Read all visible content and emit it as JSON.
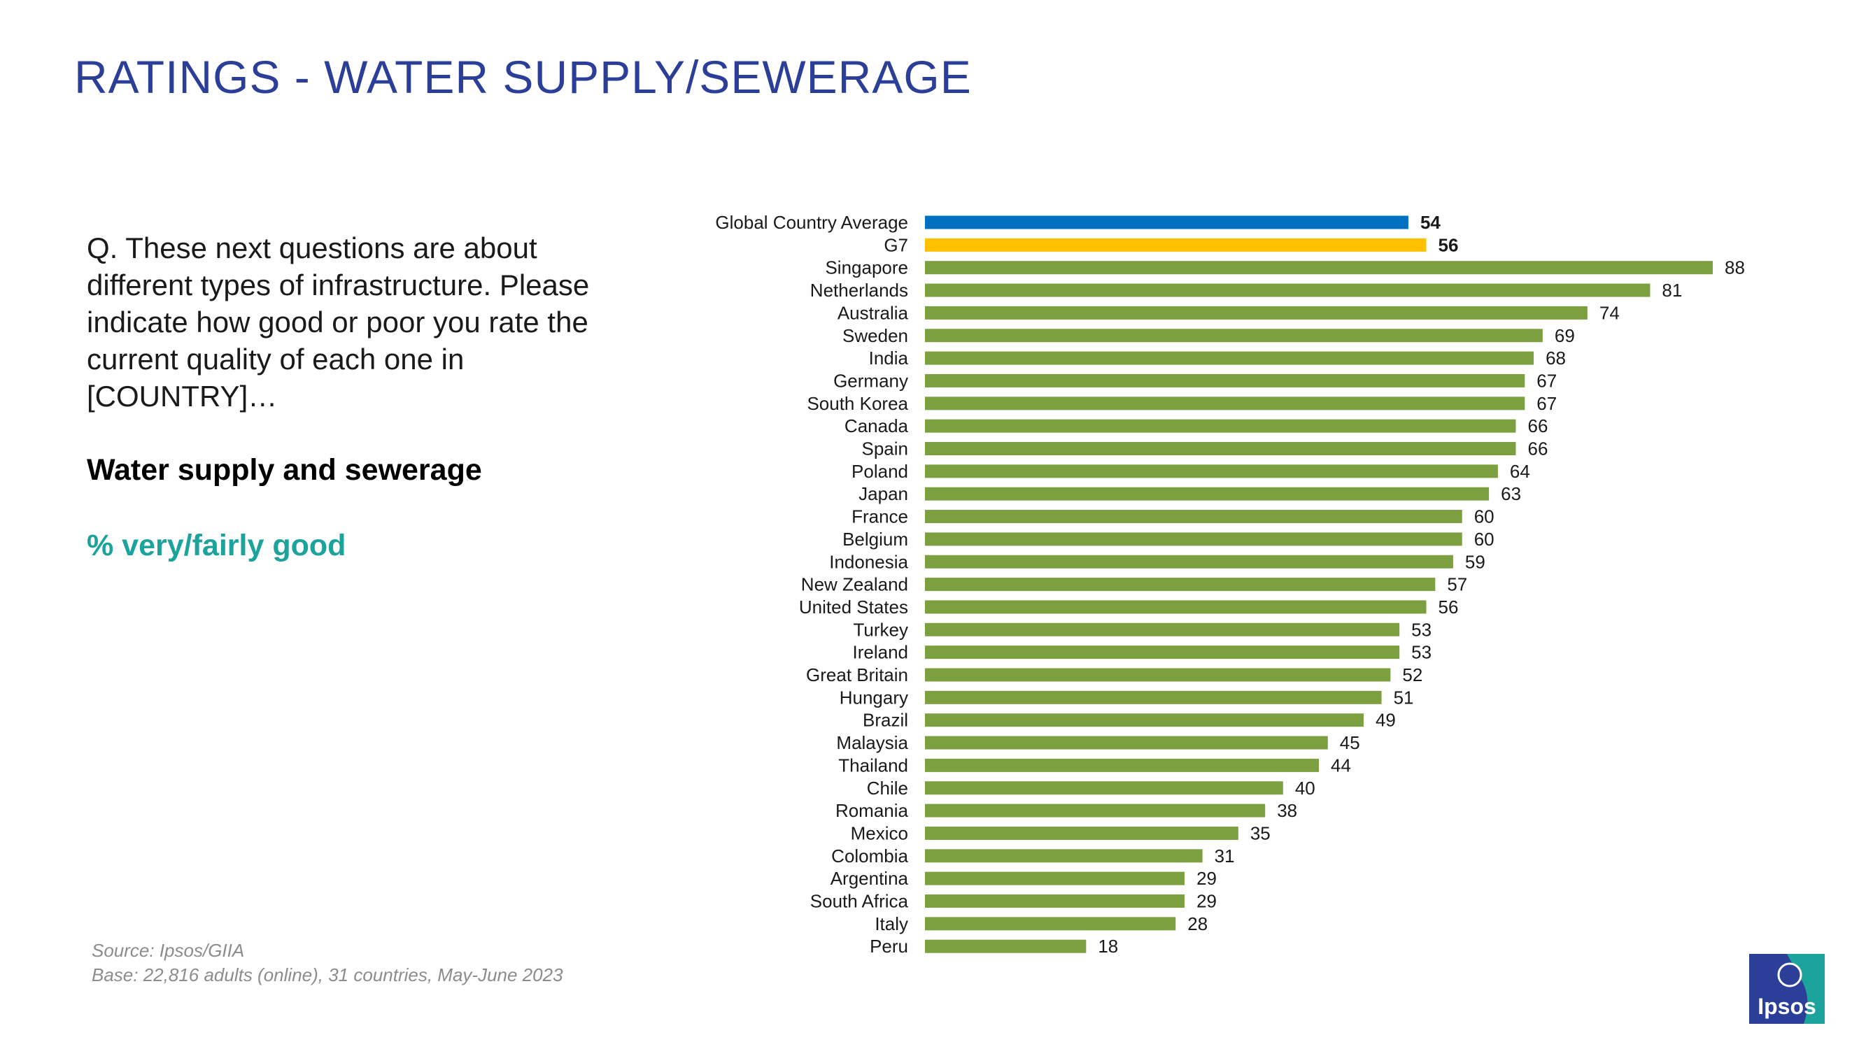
{
  "header": {
    "title": "RATINGS - WATER SUPPLY/SEWERAGE"
  },
  "sidebar": {
    "question": "Q. These next questions are about different types of infrastructure. Please indicate how good or poor you rate the current quality of each one in [COUNTRY]…",
    "topic": "Water supply and sewerage",
    "measure": "% very/fairly good"
  },
  "footer": {
    "source": "Source: Ipsos/GIIA",
    "base": "Base: 22,816 adults (online), 31 countries, May-June 2023"
  },
  "logo": {
    "text": "Ipsos"
  },
  "colors": {
    "title": "#2B3F98",
    "global_average": "#0070C0",
    "g7": "#FFC000",
    "country": "#7CA040",
    "measure_text": "#1BA39C"
  },
  "chart_data": {
    "type": "bar",
    "orientation": "horizontal",
    "title": "",
    "xlabel": "",
    "ylabel": "",
    "xlim": [
      0,
      100
    ],
    "categories": [
      "Global Country Average",
      "G7",
      "Singapore",
      "Netherlands",
      "Australia",
      "Sweden",
      "India",
      "Germany",
      "South Korea",
      "Canada",
      "Spain",
      "Poland",
      "Japan",
      "France",
      "Belgium",
      "Indonesia",
      "New Zealand",
      "United States",
      "Turkey",
      "Ireland",
      "Great Britain",
      "Hungary",
      "Brazil",
      "Malaysia",
      "Thailand",
      "Chile",
      "Romania",
      "Mexico",
      "Colombia",
      "Argentina",
      "South Africa",
      "Italy",
      "Peru"
    ],
    "values": [
      54,
      56,
      88,
      81,
      74,
      69,
      68,
      67,
      67,
      66,
      66,
      64,
      63,
      60,
      60,
      59,
      57,
      56,
      53,
      53,
      52,
      51,
      49,
      45,
      44,
      40,
      38,
      35,
      31,
      29,
      29,
      28,
      18
    ],
    "bar_groups": [
      "average",
      "g7",
      "country",
      "country",
      "country",
      "country",
      "country",
      "country",
      "country",
      "country",
      "country",
      "country",
      "country",
      "country",
      "country",
      "country",
      "country",
      "country",
      "country",
      "country",
      "country",
      "country",
      "country",
      "country",
      "country",
      "country",
      "country",
      "country",
      "country",
      "country",
      "country",
      "country",
      "country"
    ],
    "bold_labels": [
      true,
      true,
      false,
      false,
      false,
      false,
      false,
      false,
      false,
      false,
      false,
      false,
      false,
      false,
      false,
      false,
      false,
      false,
      false,
      false,
      false,
      false,
      false,
      false,
      false,
      false,
      false,
      false,
      false,
      false,
      false,
      false,
      false
    ],
    "grid": false,
    "legend": "none"
  }
}
